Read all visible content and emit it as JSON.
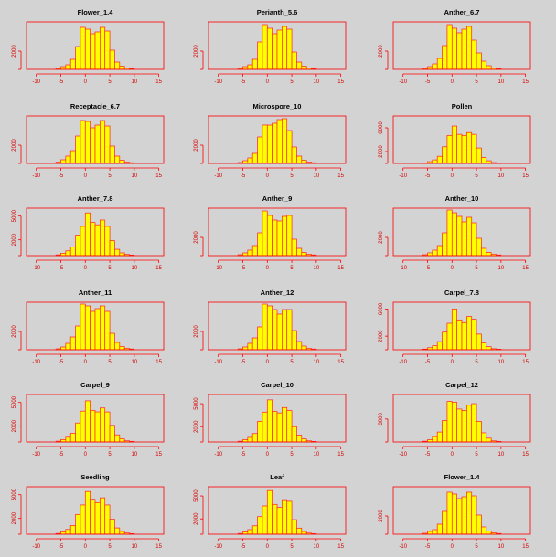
{
  "colors": {
    "bar_fill": "#ffff00",
    "bar_stroke": "#ff2020",
    "axis": "#ff0000",
    "background": "#d3d3d3"
  },
  "chart_data": [
    {
      "type": "bar",
      "title": "Flower_1.4",
      "xlim": [
        -12,
        16
      ],
      "xticks": [
        "-10",
        "-5",
        "0",
        "5",
        "10",
        "15"
      ],
      "yticks": [
        "2000"
      ],
      "ylim": [
        0,
        5200
      ],
      "bin_edges": [
        -6,
        -5,
        -4,
        -3,
        -2,
        -1,
        0,
        1,
        2,
        3,
        4,
        5,
        6,
        7,
        8,
        9,
        10
      ],
      "values": [
        100,
        300,
        500,
        1100,
        2500,
        4600,
        4400,
        3900,
        4100,
        4600,
        4200,
        2100,
        800,
        350,
        150,
        80
      ]
    },
    {
      "type": "bar",
      "title": "Perianth_5.6",
      "xlim": [
        -12,
        16
      ],
      "xticks": [
        "-10",
        "-5",
        "0",
        "5",
        "10",
        "15"
      ],
      "yticks": [
        "2000"
      ],
      "ylim": [
        0,
        5200
      ],
      "bin_edges": [
        -6,
        -5,
        -4,
        -3,
        -2,
        -1,
        0,
        1,
        2,
        3,
        4,
        5,
        6,
        7,
        8,
        9,
        10
      ],
      "values": [
        100,
        300,
        500,
        1100,
        3000,
        4900,
        4500,
        3900,
        4300,
        4700,
        4400,
        1900,
        800,
        350,
        150,
        80
      ]
    },
    {
      "type": "bar",
      "title": "Anther_6.7",
      "xlim": [
        -12,
        16
      ],
      "xticks": [
        "-10",
        "-5",
        "0",
        "5",
        "10",
        "15"
      ],
      "yticks": [
        "2000"
      ],
      "ylim": [
        0,
        5200
      ],
      "bin_edges": [
        -6,
        -5,
        -4,
        -3,
        -2,
        -1,
        0,
        1,
        2,
        3,
        4,
        5,
        6,
        7,
        8,
        9,
        10
      ],
      "values": [
        100,
        300,
        600,
        1200,
        2600,
        4900,
        4500,
        4000,
        4400,
        4700,
        3200,
        1800,
        900,
        400,
        150,
        80
      ]
    },
    {
      "type": "bar",
      "title": "Receptacle_6.7",
      "xlim": [
        -12,
        16
      ],
      "xticks": [
        "-10",
        "-5",
        "0",
        "5",
        "10",
        "15"
      ],
      "yticks": [
        "2000"
      ],
      "ylim": [
        0,
        5200
      ],
      "bin_edges": [
        -6,
        -5,
        -4,
        -3,
        -2,
        -1,
        0,
        1,
        2,
        3,
        4,
        5,
        6,
        7,
        8,
        9,
        10
      ],
      "values": [
        150,
        400,
        800,
        1400,
        3000,
        4700,
        4600,
        3900,
        4200,
        4700,
        4100,
        1900,
        800,
        350,
        150,
        80
      ]
    },
    {
      "type": "bar",
      "title": "Microspore_10",
      "xlim": [
        -12,
        16
      ],
      "xticks": [
        "-10",
        "-5",
        "0",
        "5",
        "10",
        "15"
      ],
      "yticks": [
        "2000"
      ],
      "ylim": [
        0,
        5200
      ],
      "bin_edges": [
        -6,
        -5,
        -4,
        -3,
        -2,
        -1,
        0,
        1,
        2,
        3,
        4,
        5,
        6,
        7,
        8,
        9,
        10
      ],
      "values": [
        100,
        300,
        600,
        1100,
        2900,
        4200,
        4200,
        4400,
        4800,
        4900,
        3600,
        1800,
        800,
        350,
        150,
        80
      ]
    },
    {
      "type": "bar",
      "title": "Pollen",
      "xlim": [
        -12,
        16
      ],
      "xticks": [
        "-10",
        "-5",
        "0",
        "5",
        "10",
        "15"
      ],
      "yticks": [
        "2000",
        "6000"
      ],
      "ylim": [
        0,
        8000
      ],
      "bin_edges": [
        -6,
        -5,
        -4,
        -3,
        -2,
        -1,
        0,
        1,
        2,
        3,
        4,
        5,
        6,
        7,
        8,
        9,
        10
      ],
      "values": [
        100,
        300,
        600,
        1200,
        2800,
        4700,
        6300,
        4900,
        4700,
        5200,
        4900,
        2600,
        1000,
        450,
        150,
        80
      ]
    },
    {
      "type": "bar",
      "title": "Anther_7.8",
      "xlim": [
        -12,
        16
      ],
      "xticks": [
        "-10",
        "-5",
        "0",
        "5",
        "10",
        "15"
      ],
      "yticks": [
        "2000",
        "5000"
      ],
      "ylim": [
        0,
        6000
      ],
      "bin_edges": [
        -6,
        -5,
        -4,
        -3,
        -2,
        -1,
        0,
        1,
        2,
        3,
        4,
        5,
        6,
        7,
        8,
        9,
        10
      ],
      "values": [
        100,
        300,
        600,
        1100,
        2600,
        3700,
        5400,
        4200,
        3900,
        4500,
        3700,
        1900,
        800,
        350,
        150,
        80
      ]
    },
    {
      "type": "bar",
      "title": "Anther_9",
      "xlim": [
        -12,
        16
      ],
      "xticks": [
        "-10",
        "-5",
        "0",
        "5",
        "10",
        "15"
      ],
      "yticks": [
        "2000"
      ],
      "ylim": [
        0,
        5200
      ],
      "bin_edges": [
        -6,
        -5,
        -4,
        -3,
        -2,
        -1,
        0,
        1,
        2,
        3,
        4,
        5,
        6,
        7,
        8,
        9,
        10
      ],
      "values": [
        100,
        300,
        600,
        1100,
        2500,
        4900,
        4400,
        3900,
        3800,
        4300,
        4400,
        1800,
        800,
        350,
        150,
        80
      ]
    },
    {
      "type": "bar",
      "title": "Anther_10",
      "xlim": [
        -12,
        16
      ],
      "xticks": [
        "-10",
        "-5",
        "0",
        "5",
        "10",
        "15"
      ],
      "yticks": [
        "2000"
      ],
      "ylim": [
        0,
        5200
      ],
      "bin_edges": [
        -6,
        -5,
        -4,
        -3,
        -2,
        -1,
        0,
        1,
        2,
        3,
        4,
        5,
        6,
        7,
        8,
        9,
        10
      ],
      "values": [
        100,
        300,
        600,
        1100,
        2500,
        5000,
        4700,
        4300,
        3700,
        4200,
        3600,
        1900,
        800,
        350,
        150,
        80
      ]
    },
    {
      "type": "bar",
      "title": "Anther_11",
      "xlim": [
        -12,
        16
      ],
      "xticks": [
        "-10",
        "-5",
        "0",
        "5",
        "10",
        "15"
      ],
      "yticks": [
        "2000"
      ],
      "ylim": [
        0,
        5200
      ],
      "bin_edges": [
        -6,
        -5,
        -4,
        -3,
        -2,
        -1,
        0,
        1,
        2,
        3,
        4,
        5,
        6,
        7,
        8,
        9,
        10
      ],
      "values": [
        100,
        300,
        700,
        1400,
        2600,
        5000,
        4800,
        4200,
        4500,
        4800,
        4200,
        1800,
        800,
        350,
        150,
        80
      ]
    },
    {
      "type": "bar",
      "title": "Anther_12",
      "xlim": [
        -12,
        16
      ],
      "xticks": [
        "-10",
        "-5",
        "0",
        "5",
        "10",
        "15"
      ],
      "yticks": [
        "2000"
      ],
      "ylim": [
        0,
        5200
      ],
      "bin_edges": [
        -6,
        -5,
        -4,
        -3,
        -2,
        -1,
        0,
        1,
        2,
        3,
        4,
        5,
        6,
        7,
        8,
        9,
        10
      ],
      "values": [
        100,
        300,
        700,
        1300,
        2500,
        5000,
        4800,
        4400,
        3900,
        4400,
        4400,
        2100,
        900,
        400,
        150,
        80
      ]
    },
    {
      "type": "bar",
      "title": "Carpel_7.8",
      "xlim": [
        -12,
        16
      ],
      "xticks": [
        "-10",
        "-5",
        "0",
        "5",
        "10",
        "15"
      ],
      "yticks": [
        "2000",
        "6000"
      ],
      "ylim": [
        0,
        7000
      ],
      "bin_edges": [
        -6,
        -5,
        -4,
        -3,
        -2,
        -1,
        0,
        1,
        2,
        3,
        4,
        5,
        6,
        7,
        8,
        9,
        10
      ],
      "values": [
        100,
        300,
        600,
        1200,
        2600,
        3900,
        6000,
        4400,
        4000,
        4900,
        4500,
        2300,
        1000,
        450,
        150,
        80
      ]
    },
    {
      "type": "bar",
      "title": "Carpel_9",
      "xlim": [
        -12,
        16
      ],
      "xticks": [
        "-10",
        "-5",
        "0",
        "5",
        "10",
        "15"
      ],
      "yticks": [
        "2000",
        "5000"
      ],
      "ylim": [
        0,
        6000
      ],
      "bin_edges": [
        -6,
        -5,
        -4,
        -3,
        -2,
        -1,
        0,
        1,
        2,
        3,
        4,
        5,
        6,
        7,
        8,
        9,
        10
      ],
      "values": [
        100,
        300,
        600,
        1100,
        2400,
        3900,
        5200,
        4000,
        3800,
        4300,
        3800,
        2100,
        900,
        400,
        150,
        80
      ]
    },
    {
      "type": "bar",
      "title": "Carpel_10",
      "xlim": [
        -12,
        16
      ],
      "xticks": [
        "-10",
        "-5",
        "0",
        "5",
        "10",
        "15"
      ],
      "yticks": [
        "2000",
        "5000"
      ],
      "ylim": [
        0,
        6200
      ],
      "bin_edges": [
        -6,
        -5,
        -4,
        -3,
        -2,
        -1,
        0,
        1,
        2,
        3,
        4,
        5,
        6,
        7,
        8,
        9,
        10
      ],
      "values": [
        100,
        300,
        600,
        1100,
        2700,
        3900,
        5500,
        4000,
        3800,
        4500,
        4100,
        2000,
        900,
        400,
        150,
        80
      ]
    },
    {
      "type": "bar",
      "title": "Carpel_12",
      "xlim": [
        -12,
        16
      ],
      "xticks": [
        "-10",
        "-5",
        "0",
        "5",
        "10",
        "15"
      ],
      "yticks": [
        "3000"
      ],
      "ylim": [
        0,
        6200
      ],
      "bin_edges": [
        -6,
        -5,
        -4,
        -3,
        -2,
        -1,
        0,
        1,
        2,
        3,
        4,
        5,
        6,
        7,
        8,
        9,
        10
      ],
      "values": [
        100,
        300,
        700,
        1300,
        2800,
        5300,
        5200,
        4300,
        4100,
        4800,
        5000,
        2700,
        1200,
        500,
        150,
        80
      ]
    },
    {
      "type": "bar",
      "title": "Seedling",
      "xlim": [
        -12,
        16
      ],
      "xticks": [
        "-10",
        "-5",
        "0",
        "5",
        "10",
        "15"
      ],
      "yticks": [
        "2000",
        "5000"
      ],
      "ylim": [
        0,
        6000
      ],
      "bin_edges": [
        -6,
        -5,
        -4,
        -3,
        -2,
        -1,
        0,
        1,
        2,
        3,
        4,
        5,
        6,
        7,
        8,
        9,
        10
      ],
      "values": [
        100,
        300,
        600,
        1100,
        2500,
        3700,
        5400,
        4300,
        4000,
        4600,
        3700,
        1900,
        800,
        350,
        150,
        80
      ]
    },
    {
      "type": "bar",
      "title": "Leaf",
      "xlim": [
        -12,
        16
      ],
      "xticks": [
        "-10",
        "-5",
        "0",
        "5",
        "10",
        "15"
      ],
      "yticks": [
        "2000",
        "5000"
      ],
      "ylim": [
        0,
        6200
      ],
      "bin_edges": [
        -6,
        -5,
        -4,
        -3,
        -2,
        -1,
        0,
        1,
        2,
        3,
        4,
        5,
        6,
        7,
        8,
        9,
        10
      ],
      "values": [
        100,
        300,
        600,
        1100,
        2300,
        3700,
        5700,
        3900,
        3500,
        4400,
        4300,
        1900,
        800,
        350,
        150,
        80
      ]
    },
    {
      "type": "bar",
      "title": "Flower_1.4",
      "xlim": [
        -12,
        16
      ],
      "xticks": [
        "-10",
        "-5",
        "0",
        "5",
        "10",
        "15"
      ],
      "yticks": [
        "2000"
      ],
      "ylim": [
        0,
        5200
      ],
      "bin_edges": [
        -6,
        -5,
        -4,
        -3,
        -2,
        -1,
        0,
        1,
        2,
        3,
        4,
        5,
        6,
        7,
        8,
        9,
        10
      ],
      "values": [
        100,
        300,
        500,
        1100,
        2500,
        4600,
        4400,
        3900,
        4100,
        4600,
        4200,
        2100,
        800,
        350,
        150,
        80
      ]
    }
  ]
}
